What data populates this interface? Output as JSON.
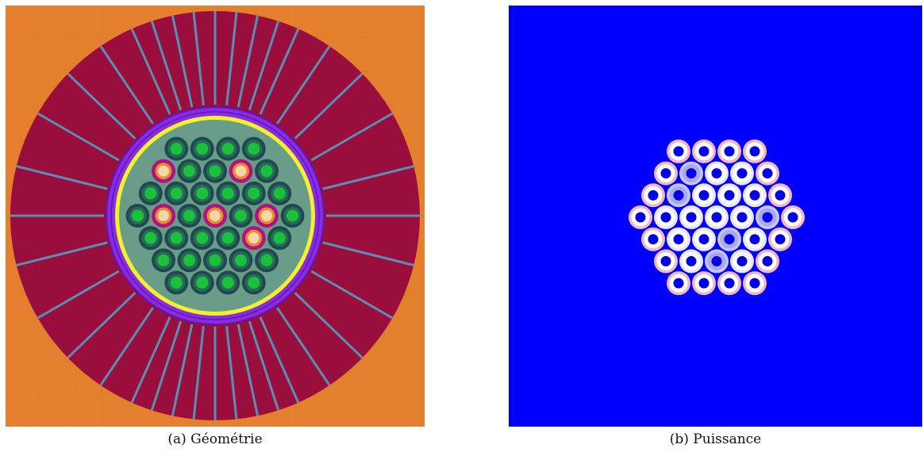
{
  "figure": {
    "panel_a": {
      "caption": "(a) Géométrie",
      "colors": {
        "outer": "#e47f2e",
        "reflector": "#9a0e3e",
        "channel": "#5b8fb1",
        "barrel": "#8a2be2",
        "barrel_outline": "#5e17b5",
        "shroud": "#f2f22a",
        "coolant": "#6a9c8a",
        "pin_ring": "#1e4a4e",
        "pin_ring_mid": "#2a6a5a",
        "fuel": "#19c23a",
        "special_outer": "#b0127e",
        "special_mid": "#e98a3b",
        "special_core": "#f2d9a6"
      }
    },
    "panel_b": {
      "caption": "(b) Puissance",
      "colors": {
        "background": "#0000ff",
        "pin_white": "#ffffff",
        "pin_hot_edge": "#f2b8c0",
        "pin_cool_fill": "#c6c6f7",
        "pin_core": "#0000e8"
      }
    }
  }
}
